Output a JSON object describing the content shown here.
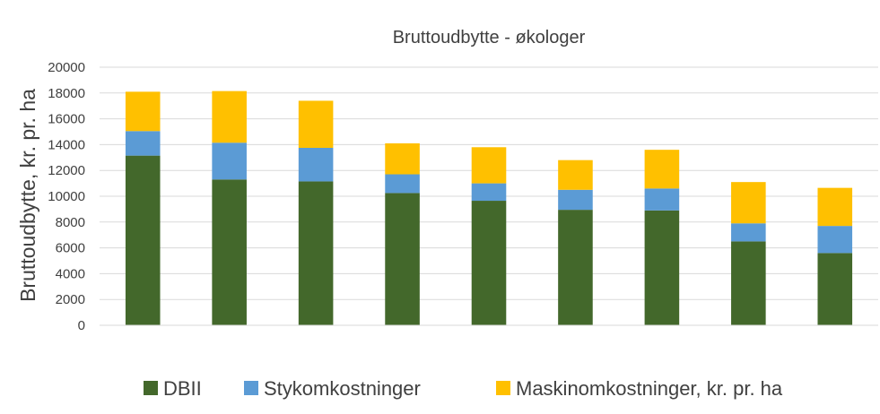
{
  "chart_data": {
    "type": "bar",
    "stacked": true,
    "title": "Bruttoudbytte - økologer",
    "xlabel": "",
    "ylabel": "Bruttoudbytte, kr. pr. ha",
    "ylim": [
      0,
      20000
    ],
    "yticks": [
      0,
      2000,
      4000,
      6000,
      8000,
      10000,
      12000,
      14000,
      16000,
      18000,
      20000
    ],
    "categories": [
      "",
      "",
      "",
      "",
      "",
      "",
      "",
      "",
      ""
    ],
    "grid": true,
    "legend_position": "bottom",
    "series": [
      {
        "name": "DBII",
        "color": "#43682b",
        "values": [
          13150,
          11300,
          11150,
          10250,
          9650,
          8950,
          8900,
          6500,
          5600
        ]
      },
      {
        "name": "Stykomkostninger",
        "color": "#5b9bd5",
        "values": [
          1900,
          2850,
          2600,
          1450,
          1350,
          1550,
          1700,
          1400,
          2100
        ]
      },
      {
        "name": "Maskinomkostninger, kr. pr. ha",
        "color": "#ffc000",
        "values": [
          3050,
          4000,
          3650,
          2400,
          2800,
          2300,
          3000,
          3200,
          2950
        ]
      }
    ]
  }
}
